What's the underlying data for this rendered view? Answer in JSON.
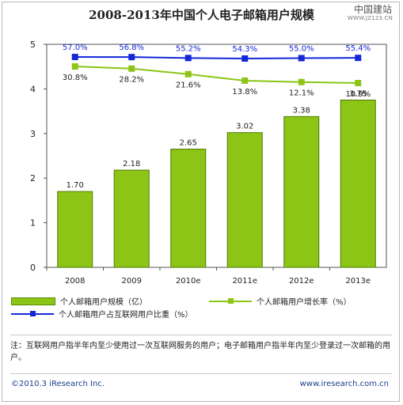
{
  "watermark": {
    "main": "中国建站",
    "sub": "WWW.JZ123.CN"
  },
  "chart_data": {
    "type": "bar",
    "title": "2008-2013年中国个人电子邮箱用户规模",
    "categories": [
      "2008",
      "2009",
      "2010e",
      "2011e",
      "2012e",
      "2013e"
    ],
    "ylim": [
      0,
      5
    ],
    "yticks": [
      "0",
      "1",
      "2",
      "3",
      "4",
      "5"
    ],
    "grid": false,
    "series": [
      {
        "name": "个人邮箱用户规模（亿）",
        "kind": "bar",
        "color": "#8cc515",
        "values": [
          1.7,
          2.18,
          2.65,
          3.02,
          3.38,
          3.75
        ],
        "labels": [
          "1.70",
          "2.18",
          "2.65",
          "3.02",
          "3.38",
          "3.75"
        ]
      },
      {
        "name": "个人邮箱用户增长率（%）",
        "kind": "line",
        "color": "#8cc515",
        "values": [
          30.8,
          28.2,
          21.6,
          13.8,
          12.1,
          10.9
        ],
        "labels": [
          "30.8%",
          "28.2%",
          "21.6%",
          "13.8%",
          "12.1%",
          "10.9%"
        ]
      },
      {
        "name": "个人邮箱用户占互联网用户比重（%）",
        "kind": "line",
        "color": "#1428d8",
        "values": [
          57.0,
          56.8,
          55.2,
          54.3,
          55.0,
          55.4
        ],
        "labels": [
          "57.0%",
          "56.8%",
          "55.2%",
          "54.3%",
          "55.0%",
          "55.4%"
        ]
      }
    ],
    "legend_position": "bottom"
  },
  "note": "注：互联网用户指半年内至少使用过一次互联网服务的用户；电子邮箱用户指半年内至少登录过一次邮箱的用户。",
  "footer": {
    "copyright": "©2010.3 iResearch Inc.",
    "website": "www.iresearch.com.cn"
  }
}
